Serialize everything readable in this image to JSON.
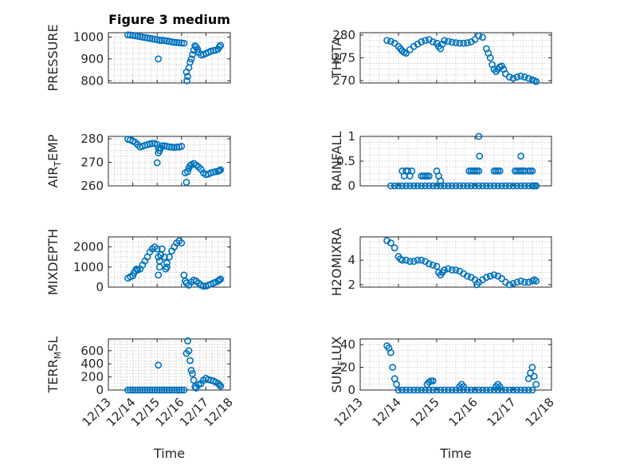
{
  "figure": {
    "title": "Figure 3 medium",
    "marker_color": "#0072BD",
    "marker_style": "open-circle",
    "grid": true,
    "xlabel": "Time"
  },
  "chart_data": [
    {
      "type": "scatter",
      "ylabel": "PRESSURE",
      "xlim": [
        13.0,
        18.0
      ],
      "ylim": [
        790,
        1020
      ],
      "yticks": [
        800,
        900,
        1000
      ],
      "ytick_labels": [
        "800",
        "900",
        "1000"
      ],
      "show_xticklabels": false,
      "series": [
        {
          "x": [
            13.8,
            13.9,
            14.0,
            14.1,
            14.2,
            14.3,
            14.4,
            14.5,
            14.6,
            14.7,
            14.8,
            14.9,
            15.0,
            15.1,
            15.2,
            15.3,
            15.4,
            15.5,
            15.6,
            15.7,
            15.8,
            15.9,
            16.0,
            16.1
          ],
          "y": [
            1010,
            1009,
            1008,
            1006,
            1004,
            1002,
            1000,
            998,
            996,
            994,
            992,
            990,
            988,
            986,
            985,
            984,
            982,
            980,
            978,
            976,
            975,
            974,
            973,
            972
          ]
        },
        {
          "x": [
            15.05,
            15.1
          ],
          "y": [
            900,
            985
          ]
        },
        {
          "x": [
            16.2,
            16.22,
            16.25,
            16.3,
            16.35,
            16.4,
            16.45,
            16.5,
            16.55,
            16.6,
            16.65,
            16.7,
            16.8,
            16.9,
            17.0,
            17.1,
            17.2,
            17.3,
            17.4,
            17.5,
            17.55,
            17.6
          ],
          "y": [
            840,
            800,
            820,
            860,
            885,
            900,
            920,
            940,
            960,
            955,
            945,
            930,
            918,
            920,
            925,
            930,
            935,
            938,
            940,
            945,
            955,
            962
          ]
        }
      ]
    },
    {
      "type": "scatter",
      "ylabel": "THETA",
      "xlim": [
        13.0,
        18.0
      ],
      "ylim": [
        269.5,
        280.5
      ],
      "yticks": [
        270,
        275,
        280
      ],
      "ytick_labels": [
        "270",
        "275",
        "280"
      ],
      "show_xticklabels": false,
      "series": [
        {
          "x": [
            13.7,
            13.8,
            13.9,
            14.0,
            14.05,
            14.1,
            14.15,
            14.2,
            14.3,
            14.4,
            14.5,
            14.6,
            14.7,
            14.8,
            14.9,
            15.0,
            15.05,
            15.1,
            15.15,
            15.2,
            15.3,
            15.4,
            15.5,
            15.6,
            15.7,
            15.8,
            15.9,
            16.0,
            16.1,
            16.2,
            16.3,
            16.35,
            16.4,
            16.45,
            16.5,
            16.55,
            16.6,
            16.65,
            16.7,
            16.75,
            16.8,
            16.9,
            17.0,
            17.1,
            17.2,
            17.3,
            17.4,
            17.5,
            17.55,
            17.6
          ],
          "y": [
            278.8,
            278.6,
            278.2,
            277.5,
            277.0,
            276.5,
            276.2,
            276.0,
            276.8,
            277.5,
            278.0,
            278.5,
            278.8,
            279.0,
            278.5,
            278.2,
            277.5,
            277.0,
            278.0,
            278.8,
            278.6,
            278.4,
            278.3,
            278.2,
            278.2,
            278.3,
            278.5,
            279.0,
            279.8,
            279.5,
            277.0,
            276.0,
            275.0,
            273.5,
            272.5,
            272.0,
            272.5,
            273.0,
            273.2,
            272.5,
            271.5,
            270.8,
            270.5,
            270.8,
            271.0,
            270.8,
            270.5,
            270.2,
            270.0,
            269.8
          ]
        }
      ]
    },
    {
      "type": "scatter",
      "ylabel": "AIR_TEMP",
      "xlim": [
        13.0,
        18.0
      ],
      "ylim": [
        260,
        281
      ],
      "yticks": [
        260,
        270,
        280
      ],
      "ytick_labels": [
        "260",
        "270",
        "280"
      ],
      "show_xticklabels": false,
      "series": [
        {
          "x": [
            13.8,
            13.9,
            14.0,
            14.1,
            14.2,
            14.3,
            14.4,
            14.5,
            14.6,
            14.7,
            14.8,
            14.9,
            15.0,
            15.05,
            15.1,
            15.15,
            15.2,
            15.3,
            15.4,
            15.5,
            15.6,
            15.7,
            15.8,
            15.9,
            16.0
          ],
          "y": [
            279.8,
            279.5,
            279.0,
            278.5,
            277.5,
            276.5,
            276.8,
            277.2,
            277.5,
            277.8,
            278.0,
            278.0,
            277.5,
            276.0,
            275.0,
            276.0,
            277.0,
            277.0,
            276.8,
            276.5,
            276.5,
            276.3,
            276.5,
            276.5,
            276.8
          ]
        },
        {
          "x": [
            15.0,
            15.05
          ],
          "y": [
            269.8,
            274.0
          ]
        },
        {
          "x": [
            16.15,
            16.2,
            16.25,
            16.3,
            16.35,
            16.4,
            16.5,
            16.6,
            16.7,
            16.8,
            16.9,
            17.0,
            17.1,
            17.2,
            17.3,
            17.4,
            17.5,
            17.55,
            17.6
          ],
          "y": [
            265.5,
            261.5,
            266.0,
            267.5,
            268.5,
            269.0,
            269.5,
            268.8,
            268.0,
            267.0,
            265.5,
            264.8,
            265.0,
            265.5,
            265.8,
            266.0,
            266.2,
            266.5,
            266.8
          ]
        }
      ]
    },
    {
      "type": "scatter",
      "ylabel": "RAINFALL",
      "xlim": [
        13.0,
        18.0
      ],
      "ylim": [
        0,
        1
      ],
      "yticks": [
        0,
        0.5,
        1
      ],
      "ytick_labels": [
        "0",
        "0.5",
        "1"
      ],
      "show_xticklabels": false,
      "series": [
        {
          "x": [
            13.8,
            13.9,
            14.0,
            14.1,
            14.2,
            14.3,
            14.4,
            14.5,
            14.6,
            14.7,
            14.8,
            14.9,
            15.0,
            15.1,
            15.2,
            15.3,
            15.4,
            15.5,
            15.6,
            15.7,
            15.8,
            15.9,
            16.0,
            16.1,
            16.2,
            16.3,
            16.4,
            16.5,
            16.6,
            16.7,
            16.8,
            16.9,
            17.0,
            17.1,
            17.2,
            17.3,
            17.4,
            17.5,
            17.6
          ],
          "y": [
            0,
            0,
            0,
            0,
            0,
            0,
            0,
            0,
            0,
            0,
            0,
            0,
            0,
            0,
            0,
            0,
            0,
            0,
            0,
            0,
            0,
            0,
            0,
            0,
            0,
            0,
            0,
            0,
            0,
            0,
            0,
            0,
            0,
            0,
            0,
            0,
            0,
            0,
            0
          ]
        },
        {
          "x": [
            14.1,
            14.15,
            14.2,
            14.25,
            14.3,
            14.35,
            14.6,
            14.65,
            14.7,
            14.75,
            14.8,
            15.0,
            15.05,
            15.1,
            15.85,
            15.9,
            15.95,
            16.0,
            16.05,
            16.1,
            16.5,
            16.55,
            16.6,
            16.65,
            17.05,
            17.1,
            17.15,
            17.2,
            17.25,
            17.3,
            17.4,
            17.45,
            17.5
          ],
          "y": [
            0.3,
            0.2,
            0.3,
            0.3,
            0.2,
            0.3,
            0.2,
            0.2,
            0.2,
            0.2,
            0.2,
            0.3,
            0.2,
            0.1,
            0.3,
            0.3,
            0.3,
            0.3,
            0.3,
            0.3,
            0.3,
            0.3,
            0.3,
            0.3,
            0.3,
            0.3,
            0.3,
            0.3,
            0.3,
            0.3,
            0.3,
            0.3,
            0.3
          ]
        },
        {
          "x": [
            16.1,
            16.12,
            17.2
          ],
          "y": [
            1.0,
            0.6,
            0.6
          ]
        },
        {
          "x": [
            17.5,
            17.55,
            17.6
          ],
          "y": [
            0,
            0,
            0
          ]
        }
      ]
    },
    {
      "type": "scatter",
      "ylabel": "MIXDEPTH",
      "xlim": [
        13.0,
        18.0
      ],
      "ylim": [
        0,
        2500
      ],
      "yticks": [
        0,
        1000,
        2000
      ],
      "ytick_labels": [
        "0",
        "1000",
        "2000"
      ],
      "show_xticklabels": false,
      "series": [
        {
          "x": [
            13.8,
            13.9,
            14.0,
            14.05,
            14.1,
            14.15,
            14.2,
            14.3,
            14.4,
            14.5,
            14.6,
            14.7,
            14.8,
            14.9,
            15.0,
            15.05,
            15.1,
            15.15,
            15.2,
            15.3,
            15.4,
            15.5,
            15.6,
            15.7,
            15.8,
            15.9,
            16.0
          ],
          "y": [
            450,
            520,
            560,
            700,
            800,
            900,
            850,
            900,
            1100,
            1300,
            1500,
            1750,
            1900,
            2000,
            1900,
            1500,
            1300,
            1600,
            1900,
            1500,
            1200,
            1500,
            1800,
            2000,
            2200,
            2300,
            2200
          ]
        },
        {
          "x": [
            15.05,
            15.1,
            15.35,
            15.4
          ],
          "y": [
            600,
            1000,
            900,
            1000
          ]
        },
        {
          "x": [
            16.1,
            16.15,
            16.2,
            16.3,
            16.4,
            16.5,
            16.6,
            16.7,
            16.8,
            16.9,
            17.0,
            17.1,
            17.2,
            17.3,
            17.4,
            17.5,
            17.55,
            17.6
          ],
          "y": [
            600,
            300,
            200,
            100,
            250,
            350,
            300,
            200,
            100,
            50,
            50,
            100,
            150,
            200,
            250,
            300,
            350,
            400
          ]
        }
      ]
    },
    {
      "type": "scatter",
      "ylabel": "H2OMIXRA",
      "xlim": [
        13.0,
        18.0
      ],
      "ylim": [
        1.8,
        5.9
      ],
      "yticks": [
        2,
        4
      ],
      "ytick_labels": [
        "2",
        "4"
      ],
      "show_xticklabels": false,
      "series": [
        {
          "x": [
            13.7,
            13.8,
            13.9,
            14.0,
            14.05,
            14.1,
            14.2,
            14.3,
            14.4,
            14.5,
            14.6,
            14.7,
            14.8,
            14.9,
            15.0,
            15.05,
            15.1,
            15.15,
            15.2,
            15.3,
            15.4,
            15.5,
            15.6,
            15.7,
            15.8,
            15.9,
            16.0,
            16.05,
            16.1,
            16.2,
            16.3,
            16.4,
            16.5,
            16.6,
            16.7,
            16.8,
            16.9,
            17.0,
            17.1,
            17.2,
            17.3,
            17.4,
            17.5,
            17.55,
            17.6
          ],
          "y": [
            5.6,
            5.4,
            5.0,
            4.3,
            4.1,
            4.0,
            4.0,
            3.9,
            3.9,
            4.0,
            4.0,
            3.9,
            3.7,
            3.6,
            3.5,
            3.0,
            2.8,
            3.0,
            3.2,
            3.3,
            3.2,
            3.2,
            3.1,
            2.9,
            2.7,
            2.6,
            2.4,
            2.0,
            2.2,
            2.4,
            2.6,
            2.7,
            2.8,
            2.7,
            2.5,
            2.2,
            2.0,
            2.1,
            2.2,
            2.3,
            2.2,
            2.2,
            2.3,
            2.4,
            2.3
          ]
        }
      ]
    },
    {
      "type": "scatter",
      "ylabel": "TERR_MSL",
      "xlim": [
        13.0,
        18.0
      ],
      "ylim": [
        0,
        780
      ],
      "yticks": [
        0,
        200,
        400,
        600
      ],
      "ytick_labels": [
        "0",
        "200",
        "400",
        "600"
      ],
      "show_xticklabels": true,
      "xticks": [
        13,
        14,
        15,
        16,
        17,
        18
      ],
      "xtick_labels": [
        "12/13",
        "12/14",
        "12/15",
        "12/16",
        "12/17",
        "12/18"
      ],
      "series": [
        {
          "x": [
            13.8,
            13.9,
            14.0,
            14.1,
            14.2,
            14.3,
            14.4,
            14.5,
            14.6,
            14.7,
            14.8,
            14.9,
            15.0,
            15.1,
            15.2,
            15.3,
            15.4,
            15.5,
            15.6,
            15.7,
            15.8,
            15.9,
            16.0,
            16.1
          ],
          "y": [
            0,
            0,
            0,
            0,
            0,
            0,
            0,
            0,
            0,
            0,
            0,
            0,
            0,
            0,
            0,
            0,
            0,
            0,
            0,
            0,
            0,
            0,
            0,
            0
          ]
        },
        {
          "x": [
            15.05
          ],
          "y": [
            380
          ]
        },
        {
          "x": [
            16.2,
            16.25,
            16.3,
            16.35,
            16.4,
            16.45,
            16.5,
            16.55,
            16.6,
            16.7,
            16.8,
            16.9,
            17.0,
            17.1,
            17.2,
            17.3,
            17.4,
            17.5,
            17.55,
            17.6
          ],
          "y": [
            560,
            750,
            600,
            450,
            300,
            250,
            150,
            50,
            30,
            80,
            100,
            150,
            180,
            160,
            150,
            140,
            120,
            100,
            80,
            60
          ]
        }
      ]
    },
    {
      "type": "scatter",
      "ylabel": "SUN_FLUX",
      "xlim": [
        13.0,
        18.0
      ],
      "ylim": [
        0,
        45
      ],
      "yticks": [
        0,
        20,
        40
      ],
      "ytick_labels": [
        "0",
        "20",
        "40"
      ],
      "show_xticklabels": true,
      "xticks": [
        13,
        14,
        15,
        16,
        17,
        18
      ],
      "xtick_labels": [
        "12/13",
        "12/14",
        "12/15",
        "12/16",
        "12/17",
        "12/18"
      ],
      "series": [
        {
          "x": [
            13.7,
            13.75,
            13.8,
            13.85,
            13.9,
            13.95,
            14.0,
            14.1,
            14.2,
            14.3,
            14.4,
            14.5,
            14.6,
            14.7,
            14.8,
            14.9,
            15.0,
            15.1,
            15.2,
            15.3,
            15.4,
            15.5,
            15.6,
            15.7,
            15.8,
            15.9,
            16.0,
            16.1,
            16.2,
            16.3,
            16.4,
            16.5,
            16.6,
            16.7,
            16.8,
            16.9,
            17.0,
            17.1,
            17.2,
            17.3,
            17.4,
            17.5
          ],
          "y": [
            39,
            37,
            33,
            20,
            10,
            5,
            0,
            0,
            0,
            0,
            0,
            0,
            0,
            0,
            0,
            0,
            0,
            0,
            0,
            0,
            0,
            0,
            0,
            0,
            0,
            0,
            0,
            0,
            0,
            0,
            0,
            0,
            0,
            0,
            0,
            0,
            0,
            0,
            0,
            0,
            0,
            0
          ]
        },
        {
          "x": [
            14.75,
            14.8,
            14.85,
            14.9,
            15.6,
            15.65,
            15.7,
            16.55,
            16.6,
            16.65,
            17.4,
            17.45,
            17.5,
            17.55,
            17.6
          ],
          "y": [
            5,
            7,
            8,
            8,
            3,
            5,
            3,
            3,
            5,
            3,
            10,
            15,
            20,
            12,
            5
          ]
        }
      ]
    }
  ]
}
